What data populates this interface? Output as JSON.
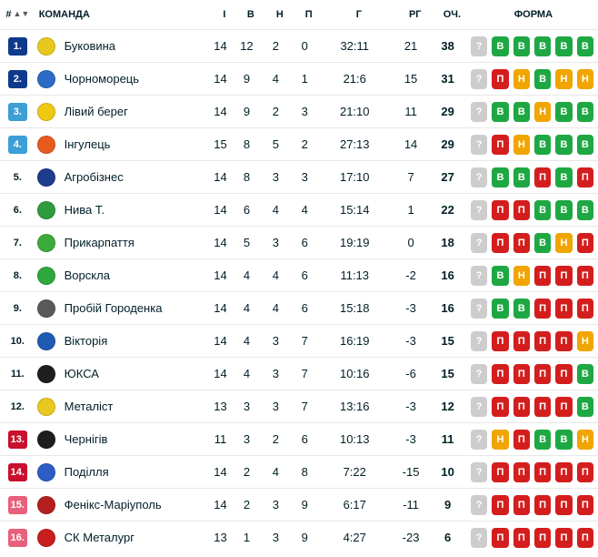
{
  "header": {
    "rank": "#",
    "sort_icon": "▲▼",
    "team": "КОМАНДА",
    "played": "І",
    "won": "В",
    "drawn": "Н",
    "lost": "П",
    "goals": "Г",
    "goal_diff": "РГ",
    "points": "ОЧ.",
    "form": "ФОРМА"
  },
  "form_colors": {
    "В": "#1ea843",
    "Н": "#f0a500",
    "П": "#d41e1e",
    "?": "#cdcdcd"
  },
  "rows": [
    {
      "rank": "1.",
      "rank_color": "#0f3a8c",
      "rank_text_color": "#ffffff",
      "logo_color": "#e8c81e",
      "team": "Буковина",
      "p": "14",
      "w": "12",
      "d": "2",
      "l": "0",
      "g": "32:11",
      "gd": "21",
      "pts": "38",
      "form": [
        "?",
        "В",
        "В",
        "В",
        "В",
        "В"
      ]
    },
    {
      "rank": "2.",
      "rank_color": "#0f3a8c",
      "rank_text_color": "#ffffff",
      "logo_color": "#2d6cc4",
      "team": "Чорноморець",
      "p": "14",
      "w": "9",
      "d": "4",
      "l": "1",
      "g": "21:6",
      "gd": "15",
      "pts": "31",
      "form": [
        "?",
        "П",
        "Н",
        "В",
        "Н",
        "Н"
      ]
    },
    {
      "rank": "3.",
      "rank_color": "#3c9fd6",
      "rank_text_color": "#ffffff",
      "logo_color": "#f0c814",
      "team": "Лівий берег",
      "p": "14",
      "w": "9",
      "d": "2",
      "l": "3",
      "g": "21:10",
      "gd": "11",
      "pts": "29",
      "form": [
        "?",
        "В",
        "В",
        "Н",
        "В",
        "В"
      ]
    },
    {
      "rank": "4.",
      "rank_color": "#3c9fd6",
      "rank_text_color": "#ffffff",
      "logo_color": "#e85a1e",
      "team": "Інгулець",
      "p": "15",
      "w": "8",
      "d": "5",
      "l": "2",
      "g": "27:13",
      "gd": "14",
      "pts": "29",
      "form": [
        "?",
        "П",
        "Н",
        "В",
        "В",
        "В"
      ]
    },
    {
      "rank": "5.",
      "rank_color": "#ffffff",
      "rank_text_color": "#001e28",
      "logo_color": "#1e3c8c",
      "team": "Агробізнес",
      "p": "14",
      "w": "8",
      "d": "3",
      "l": "3",
      "g": "17:10",
      "gd": "7",
      "pts": "27",
      "form": [
        "?",
        "В",
        "В",
        "П",
        "В",
        "П"
      ]
    },
    {
      "rank": "6.",
      "rank_color": "#ffffff",
      "rank_text_color": "#001e28",
      "logo_color": "#2e9c3c",
      "team": "Нива Т.",
      "p": "14",
      "w": "6",
      "d": "4",
      "l": "4",
      "g": "15:14",
      "gd": "1",
      "pts": "22",
      "form": [
        "?",
        "П",
        "П",
        "В",
        "В",
        "В"
      ]
    },
    {
      "rank": "7.",
      "rank_color": "#ffffff",
      "rank_text_color": "#001e28",
      "logo_color": "#3caa3c",
      "team": "Прикарпаття",
      "p": "14",
      "w": "5",
      "d": "3",
      "l": "6",
      "g": "19:19",
      "gd": "0",
      "pts": "18",
      "form": [
        "?",
        "П",
        "П",
        "В",
        "Н",
        "П"
      ]
    },
    {
      "rank": "8.",
      "rank_color": "#ffffff",
      "rank_text_color": "#001e28",
      "logo_color": "#2ea83c",
      "team": "Ворскла",
      "p": "14",
      "w": "4",
      "d": "4",
      "l": "6",
      "g": "11:13",
      "gd": "-2",
      "pts": "16",
      "form": [
        "?",
        "В",
        "Н",
        "П",
        "П",
        "П"
      ]
    },
    {
      "rank": "9.",
      "rank_color": "#ffffff",
      "rank_text_color": "#001e28",
      "logo_color": "#5a5a5a",
      "team": "Пробій Городенка",
      "p": "14",
      "w": "4",
      "d": "4",
      "l": "6",
      "g": "15:18",
      "gd": "-3",
      "pts": "16",
      "form": [
        "?",
        "В",
        "В",
        "П",
        "П",
        "П"
      ]
    },
    {
      "rank": "10.",
      "rank_color": "#ffffff",
      "rank_text_color": "#001e28",
      "logo_color": "#1e5cb4",
      "team": "Вікторія",
      "p": "14",
      "w": "4",
      "d": "3",
      "l": "7",
      "g": "16:19",
      "gd": "-3",
      "pts": "15",
      "form": [
        "?",
        "П",
        "П",
        "П",
        "П",
        "Н"
      ]
    },
    {
      "rank": "11.",
      "rank_color": "#ffffff",
      "rank_text_color": "#001e28",
      "logo_color": "#1e1e1e",
      "team": "ЮКСА",
      "p": "14",
      "w": "4",
      "d": "3",
      "l": "7",
      "g": "10:16",
      "gd": "-6",
      "pts": "15",
      "form": [
        "?",
        "П",
        "П",
        "П",
        "П",
        "В"
      ]
    },
    {
      "rank": "12.",
      "rank_color": "#ffffff",
      "rank_text_color": "#001e28",
      "logo_color": "#e8c81e",
      "team": "Металіст",
      "p": "13",
      "w": "3",
      "d": "3",
      "l": "7",
      "g": "13:16",
      "gd": "-3",
      "pts": "12",
      "form": [
        "?",
        "П",
        "П",
        "П",
        "П",
        "В"
      ]
    },
    {
      "rank": "13.",
      "rank_color": "#c8102e",
      "rank_text_color": "#ffffff",
      "logo_color": "#1e1e1e",
      "team": "Чернігів",
      "p": "11",
      "w": "3",
      "d": "2",
      "l": "6",
      "g": "10:13",
      "gd": "-3",
      "pts": "11",
      "form": [
        "?",
        "Н",
        "П",
        "В",
        "В",
        "Н"
      ]
    },
    {
      "rank": "14.",
      "rank_color": "#c8102e",
      "rank_text_color": "#ffffff",
      "logo_color": "#2d5cc4",
      "team": "Поділля",
      "p": "14",
      "w": "2",
      "d": "4",
      "l": "8",
      "g": "7:22",
      "gd": "-15",
      "pts": "10",
      "form": [
        "?",
        "П",
        "П",
        "П",
        "П",
        "П"
      ]
    },
    {
      "rank": "15.",
      "rank_color": "#e8607a",
      "rank_text_color": "#ffffff",
      "logo_color": "#b41e1e",
      "team": "Фенікс-Маріуполь",
      "p": "14",
      "w": "2",
      "d": "3",
      "l": "9",
      "g": "6:17",
      "gd": "-11",
      "pts": "9",
      "form": [
        "?",
        "П",
        "П",
        "П",
        "П",
        "П"
      ]
    },
    {
      "rank": "16.",
      "rank_color": "#e8607a",
      "rank_text_color": "#ffffff",
      "logo_color": "#c81e1e",
      "team": "СК Металург",
      "p": "13",
      "w": "1",
      "d": "3",
      "l": "9",
      "g": "4:27",
      "gd": "-23",
      "pts": "6",
      "form": [
        "?",
        "П",
        "П",
        "П",
        "П",
        "П"
      ]
    }
  ]
}
